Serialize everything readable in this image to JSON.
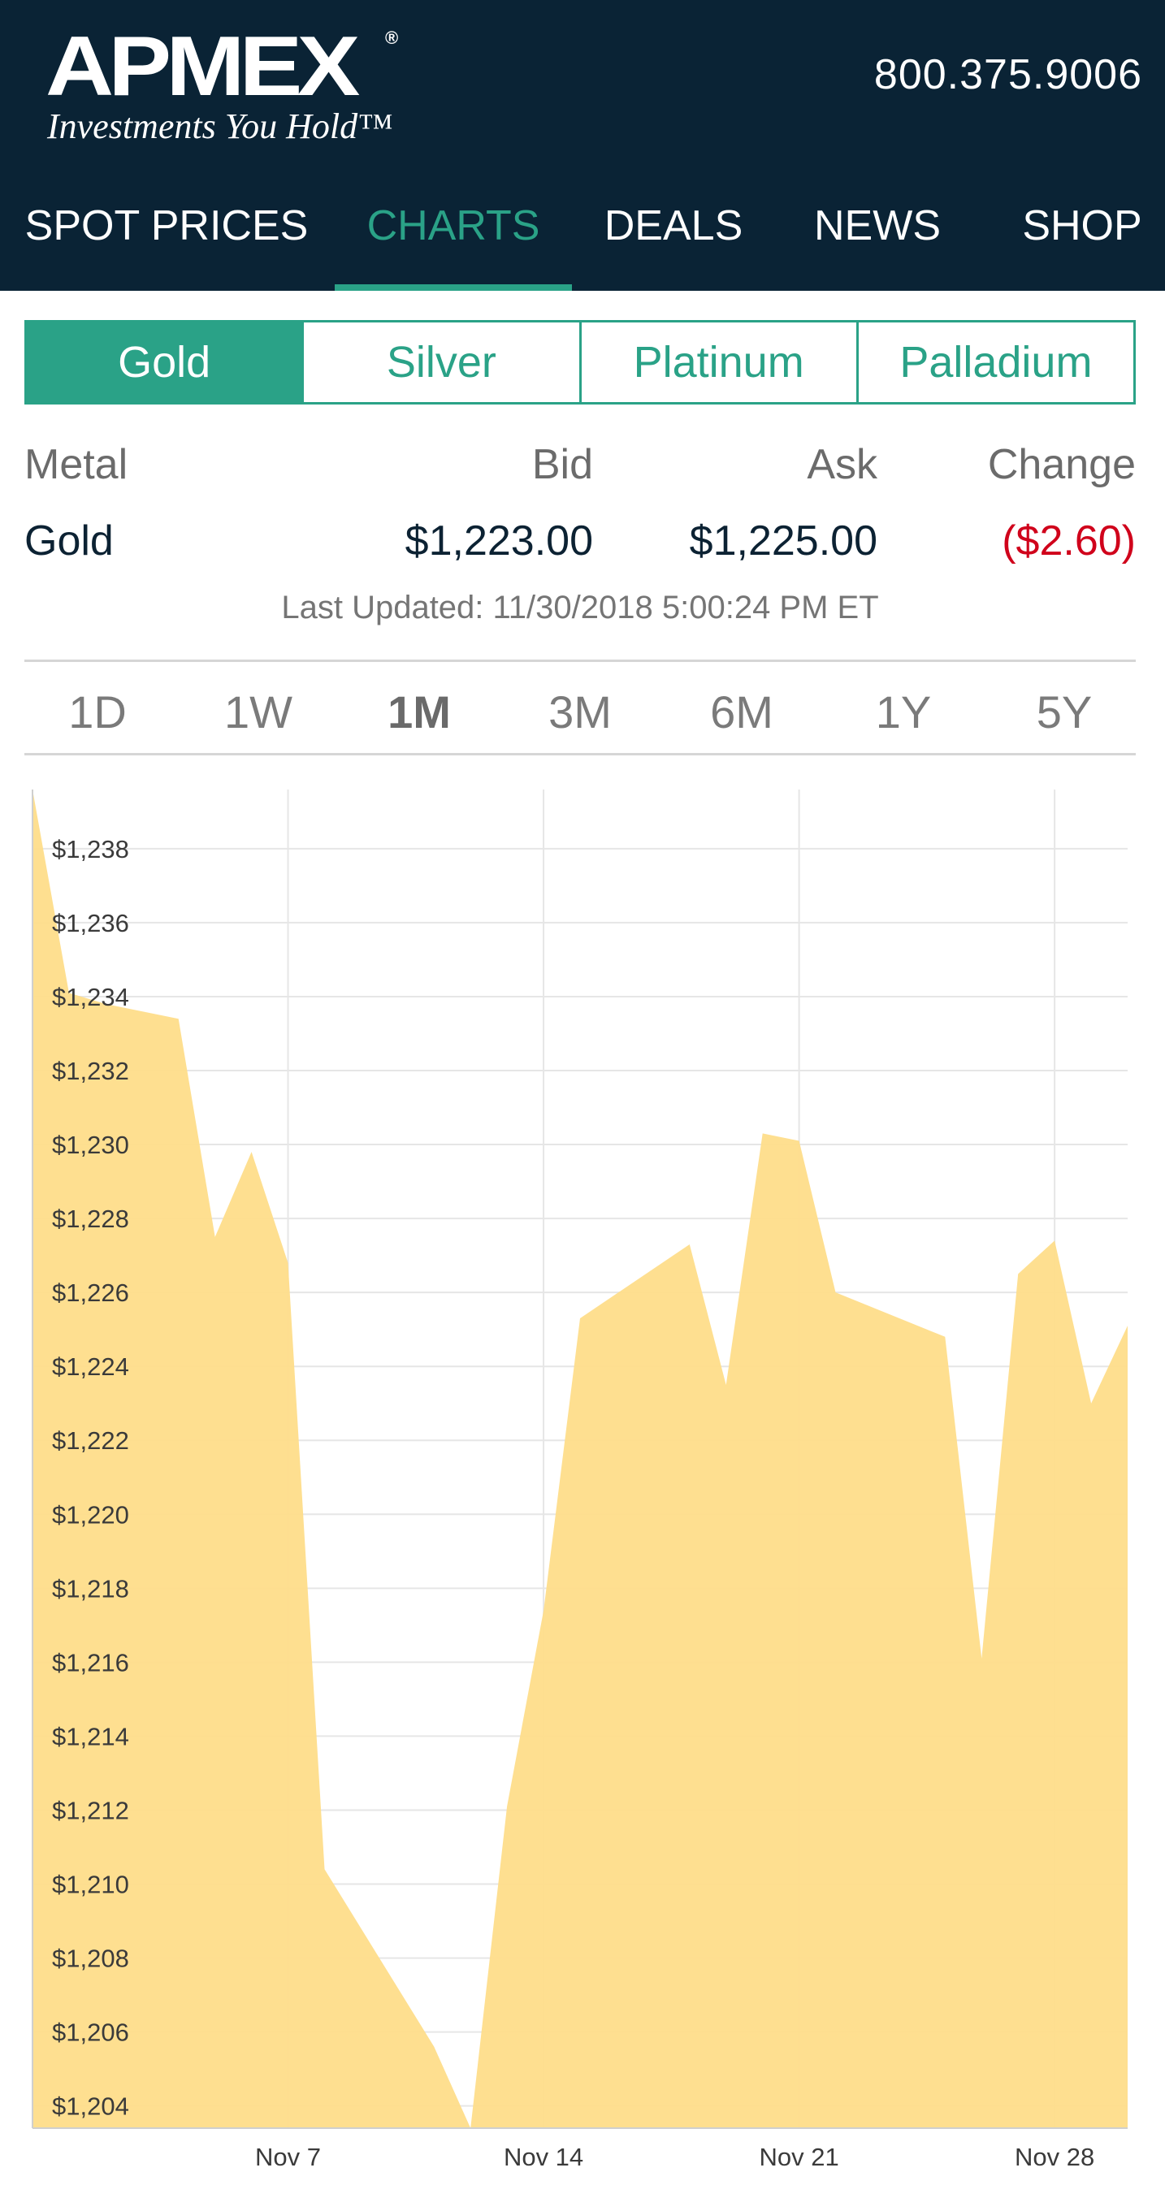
{
  "header": {
    "logo_text": "APMEX",
    "logo_registered": "®",
    "logo_tagline": "Investments You Hold™",
    "phone": "800.375.9006"
  },
  "nav": {
    "items": [
      {
        "label": "SPOT PRICES",
        "active": false
      },
      {
        "label": "CHARTS",
        "active": true
      },
      {
        "label": "DEALS",
        "active": false
      },
      {
        "label": "NEWS",
        "active": false
      },
      {
        "label": "SHOP",
        "active": false
      }
    ],
    "active_color": "#2aa287"
  },
  "metal_tabs": [
    {
      "label": "Gold",
      "active": true
    },
    {
      "label": "Silver",
      "active": false
    },
    {
      "label": "Platinum",
      "active": false
    },
    {
      "label": "Palladium",
      "active": false
    }
  ],
  "quote": {
    "headers": {
      "metal": "Metal",
      "bid": "Bid",
      "ask": "Ask",
      "change": "Change"
    },
    "metal": "Gold",
    "bid": "$1,223.00",
    "ask": "$1,225.00",
    "change": "($2.60)",
    "change_color": "#d0021b",
    "last_updated": "Last Updated: 11/30/2018 5:00:24 PM ET"
  },
  "ranges": [
    {
      "label": "1D",
      "active": false
    },
    {
      "label": "1W",
      "active": false
    },
    {
      "label": "1M",
      "active": true
    },
    {
      "label": "3M",
      "active": false
    },
    {
      "label": "6M",
      "active": false
    },
    {
      "label": "1Y",
      "active": false
    },
    {
      "label": "5Y",
      "active": false
    }
  ],
  "chart_data": {
    "type": "area",
    "fill_color": "#fedd8a",
    "grid": true,
    "xlim": [
      "2018-10-31",
      "2018-11-30"
    ],
    "ylim": [
      1203.4,
      1239.6
    ],
    "x_ticks": [
      {
        "date": "2018-11-07",
        "label": "Nov 7"
      },
      {
        "date": "2018-11-14",
        "label": "Nov 14"
      },
      {
        "date": "2018-11-21",
        "label": "Nov 21"
      },
      {
        "date": "2018-11-28",
        "label": "Nov 28"
      }
    ],
    "y_ticks": [
      {
        "value": 1238,
        "label": "$1,238"
      },
      {
        "value": 1236,
        "label": "$1,236"
      },
      {
        "value": 1234,
        "label": "$1,234"
      },
      {
        "value": 1232,
        "label": "$1,232"
      },
      {
        "value": 1230,
        "label": "$1,230"
      },
      {
        "value": 1228,
        "label": "$1,228"
      },
      {
        "value": 1226,
        "label": "$1,226"
      },
      {
        "value": 1224,
        "label": "$1,224"
      },
      {
        "value": 1222,
        "label": "$1,222"
      },
      {
        "value": 1220,
        "label": "$1,220"
      },
      {
        "value": 1218,
        "label": "$1,218"
      },
      {
        "value": 1216,
        "label": "$1,216"
      },
      {
        "value": 1214,
        "label": "$1,214"
      },
      {
        "value": 1212,
        "label": "$1,212"
      },
      {
        "value": 1210,
        "label": "$1,210"
      },
      {
        "value": 1208,
        "label": "$1,208"
      },
      {
        "value": 1206,
        "label": "$1,206"
      },
      {
        "value": 1204,
        "label": "$1,204"
      }
    ],
    "points": [
      {
        "x": "2018-10-31",
        "y": 1239.6
      },
      {
        "x": "2018-11-01",
        "y": 1234.1
      },
      {
        "x": "2018-11-02",
        "y": 1233.8
      },
      {
        "x": "2018-11-04",
        "y": 1233.4
      },
      {
        "x": "2018-11-05",
        "y": 1227.5
      },
      {
        "x": "2018-11-06",
        "y": 1229.8
      },
      {
        "x": "2018-11-07",
        "y": 1226.8
      },
      {
        "x": "2018-11-08",
        "y": 1210.4
      },
      {
        "x": "2018-11-11",
        "y": 1205.6
      },
      {
        "x": "2018-11-12",
        "y": 1203.4
      },
      {
        "x": "2018-11-13",
        "y": 1212.1
      },
      {
        "x": "2018-11-14",
        "y": 1217.4
      },
      {
        "x": "2018-11-15",
        "y": 1225.3
      },
      {
        "x": "2018-11-18",
        "y": 1227.3
      },
      {
        "x": "2018-11-19",
        "y": 1223.5
      },
      {
        "x": "2018-11-20",
        "y": 1230.3
      },
      {
        "x": "2018-11-21",
        "y": 1230.1
      },
      {
        "x": "2018-11-22",
        "y": 1226.0
      },
      {
        "x": "2018-11-25",
        "y": 1224.8
      },
      {
        "x": "2018-11-26",
        "y": 1216.1
      },
      {
        "x": "2018-11-27",
        "y": 1226.5
      },
      {
        "x": "2018-11-28",
        "y": 1227.4
      },
      {
        "x": "2018-11-29",
        "y": 1223.0
      },
      {
        "x": "2018-11-30",
        "y": 1225.1
      }
    ]
  }
}
